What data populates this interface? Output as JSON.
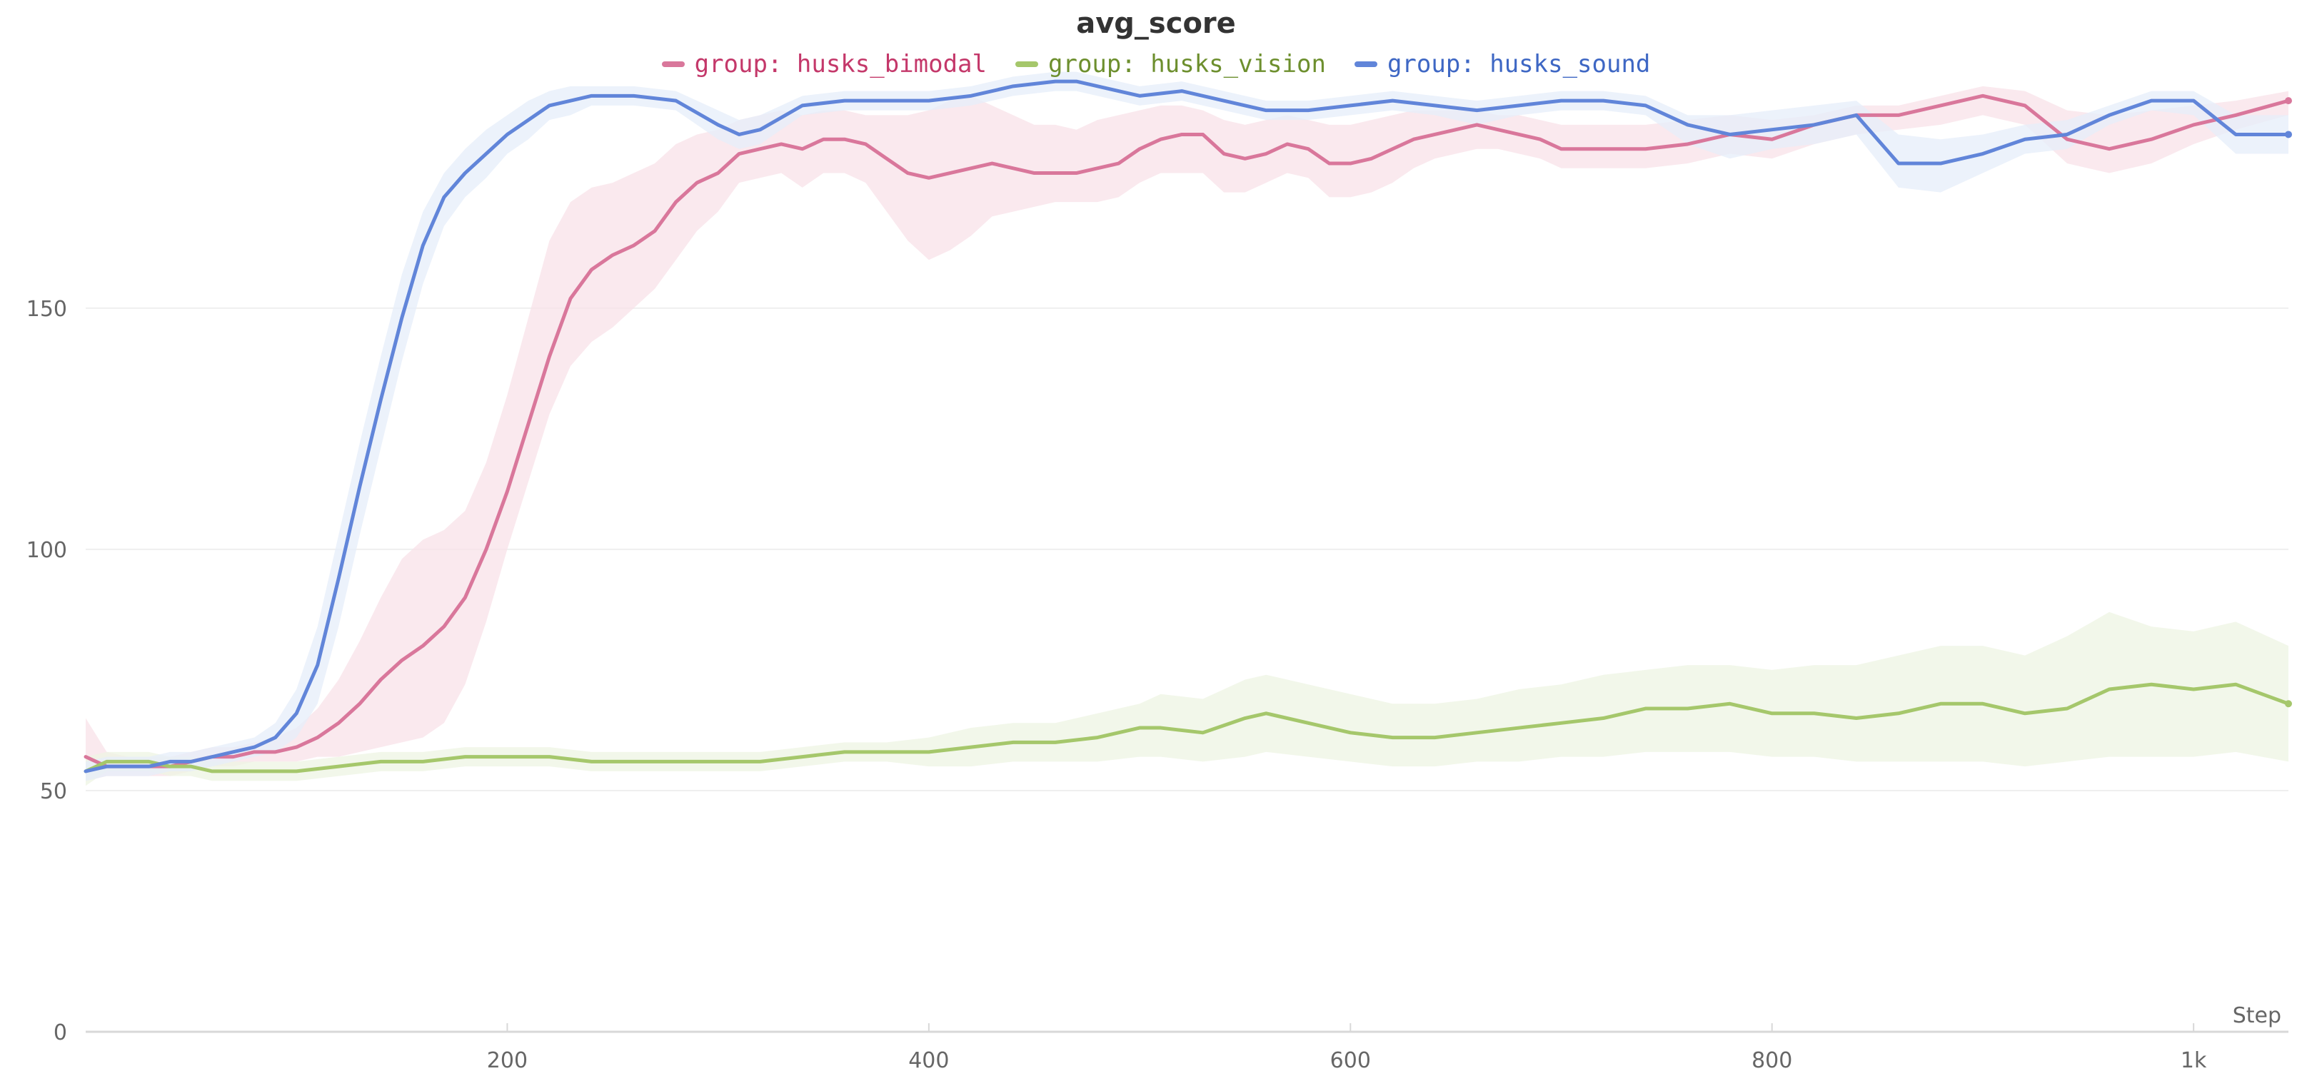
{
  "chart_data": {
    "type": "line",
    "title": "avg_score",
    "xlabel": "Step",
    "ylabel": "",
    "xlim": [
      0,
      1045
    ],
    "ylim": [
      0,
      205
    ],
    "grid": true,
    "legend_position": "top-center",
    "x_ticks": [
      {
        "value": 200,
        "label": "200"
      },
      {
        "value": 400,
        "label": "400"
      },
      {
        "value": 600,
        "label": "600"
      },
      {
        "value": 800,
        "label": "800"
      },
      {
        "value": 1000,
        "label": "1k"
      }
    ],
    "y_ticks": [
      {
        "value": 0,
        "label": "0"
      },
      {
        "value": 50,
        "label": "50"
      },
      {
        "value": 100,
        "label": "100"
      },
      {
        "value": 150,
        "label": "150"
      }
    ],
    "series": [
      {
        "name": "group: husks_bimodal",
        "color": "#d9779b",
        "legend_text_color": "#c4386a",
        "band_color": "#f8e1e8",
        "x": [
          0,
          10,
          20,
          30,
          40,
          50,
          60,
          70,
          80,
          90,
          100,
          110,
          120,
          130,
          140,
          150,
          160,
          170,
          180,
          190,
          200,
          210,
          220,
          230,
          240,
          250,
          260,
          270,
          280,
          290,
          300,
          310,
          320,
          330,
          340,
          350,
          360,
          370,
          380,
          390,
          400,
          410,
          420,
          430,
          440,
          450,
          460,
          470,
          480,
          490,
          500,
          510,
          520,
          530,
          540,
          550,
          560,
          570,
          580,
          590,
          600,
          610,
          620,
          630,
          640,
          650,
          660,
          670,
          680,
          690,
          700,
          720,
          740,
          760,
          780,
          800,
          820,
          840,
          860,
          880,
          900,
          920,
          940,
          960,
          980,
          1000,
          1020,
          1045
        ],
        "values": [
          57,
          55,
          55,
          55,
          55,
          56,
          57,
          57,
          58,
          58,
          59,
          61,
          64,
          68,
          73,
          77,
          80,
          84,
          90,
          100,
          112,
          126,
          140,
          152,
          158,
          161,
          163,
          166,
          172,
          176,
          178,
          182,
          183,
          184,
          183,
          185,
          185,
          184,
          181,
          178,
          177,
          178,
          179,
          180,
          179,
          178,
          178,
          178,
          179,
          180,
          183,
          185,
          186,
          186,
          182,
          181,
          182,
          184,
          183,
          180,
          180,
          181,
          183,
          185,
          186,
          187,
          188,
          187,
          186,
          185,
          183,
          183,
          183,
          184,
          186,
          185,
          188,
          190,
          190,
          192,
          194,
          192,
          185,
          183,
          185,
          188,
          190,
          193
        ],
        "band_upper": [
          65,
          58,
          57,
          57,
          57,
          58,
          59,
          59,
          60,
          61,
          63,
          67,
          73,
          81,
          90,
          98,
          102,
          104,
          108,
          118,
          132,
          148,
          164,
          172,
          175,
          176,
          178,
          180,
          184,
          186,
          187,
          189,
          190,
          191,
          190,
          191,
          191,
          190,
          190,
          190,
          191,
          193,
          194,
          192,
          190,
          188,
          188,
          187,
          189,
          190,
          191,
          192,
          192,
          191,
          189,
          188,
          189,
          190,
          189,
          188,
          188,
          189,
          190,
          191,
          191,
          191,
          191,
          190,
          190,
          189,
          188,
          188,
          188,
          189,
          190,
          189,
          190,
          192,
          192,
          194,
          196,
          195,
          191,
          190,
          191,
          192,
          193,
          195
        ],
        "band_lower": [
          52,
          53,
          53,
          53,
          53,
          54,
          55,
          55,
          56,
          56,
          56,
          57,
          57,
          58,
          59,
          60,
          61,
          64,
          72,
          85,
          100,
          114,
          128,
          138,
          143,
          146,
          150,
          154,
          160,
          166,
          170,
          176,
          177,
          178,
          175,
          178,
          178,
          176,
          170,
          164,
          160,
          162,
          165,
          169,
          170,
          171,
          172,
          172,
          172,
          173,
          176,
          178,
          178,
          178,
          174,
          174,
          176,
          178,
          177,
          173,
          173,
          174,
          176,
          179,
          181,
          182,
          183,
          183,
          182,
          181,
          179,
          179,
          179,
          180,
          182,
          181,
          184,
          186,
          187,
          188,
          190,
          188,
          180,
          178,
          180,
          184,
          187,
          190
        ]
      },
      {
        "name": "group: husks_vision",
        "color": "#a5c76b",
        "legend_text_color": "#6d8f2e",
        "band_color": "#eef4e3",
        "x": [
          0,
          10,
          20,
          30,
          40,
          50,
          60,
          70,
          80,
          90,
          100,
          120,
          140,
          160,
          180,
          200,
          220,
          240,
          260,
          280,
          300,
          320,
          340,
          360,
          380,
          400,
          420,
          440,
          460,
          480,
          500,
          510,
          530,
          550,
          560,
          580,
          600,
          620,
          640,
          660,
          680,
          700,
          720,
          740,
          760,
          780,
          800,
          820,
          840,
          860,
          880,
          900,
          920,
          940,
          960,
          980,
          1000,
          1020,
          1045
        ],
        "values": [
          54,
          56,
          56,
          56,
          55,
          55,
          54,
          54,
          54,
          54,
          54,
          55,
          56,
          56,
          57,
          57,
          57,
          56,
          56,
          56,
          56,
          56,
          57,
          58,
          58,
          58,
          59,
          60,
          60,
          61,
          63,
          63,
          62,
          65,
          66,
          64,
          62,
          61,
          61,
          62,
          63,
          64,
          65,
          67,
          67,
          68,
          66,
          66,
          65,
          66,
          68,
          68,
          66,
          67,
          71,
          72,
          71,
          72,
          68
        ],
        "band_upper": [
          57,
          58,
          58,
          58,
          57,
          57,
          56,
          56,
          56,
          56,
          56,
          57,
          58,
          58,
          59,
          59,
          59,
          58,
          58,
          58,
          58,
          58,
          59,
          60,
          60,
          61,
          63,
          64,
          64,
          66,
          68,
          70,
          69,
          73,
          74,
          72,
          70,
          68,
          68,
          69,
          71,
          72,
          74,
          75,
          76,
          76,
          75,
          76,
          76,
          78,
          80,
          80,
          78,
          82,
          87,
          84,
          83,
          85,
          80
        ],
        "band_lower": [
          51,
          54,
          54,
          54,
          53,
          53,
          52,
          52,
          52,
          52,
          52,
          53,
          54,
          54,
          55,
          55,
          55,
          54,
          54,
          54,
          54,
          54,
          55,
          56,
          56,
          55,
          55,
          56,
          56,
          56,
          57,
          57,
          56,
          57,
          58,
          57,
          56,
          55,
          55,
          56,
          56,
          57,
          57,
          58,
          58,
          58,
          57,
          57,
          56,
          56,
          56,
          56,
          55,
          56,
          57,
          57,
          57,
          58,
          56
        ]
      },
      {
        "name": "group: husks_sound",
        "color": "#6185d9",
        "legend_text_color": "#3e67c4",
        "band_color": "#e6edfa",
        "x": [
          0,
          10,
          20,
          30,
          40,
          50,
          60,
          70,
          80,
          90,
          100,
          110,
          120,
          130,
          140,
          150,
          160,
          170,
          180,
          190,
          200,
          210,
          220,
          230,
          240,
          260,
          280,
          300,
          310,
          320,
          340,
          360,
          380,
          400,
          420,
          440,
          460,
          470,
          480,
          500,
          520,
          540,
          560,
          580,
          600,
          620,
          640,
          660,
          680,
          700,
          720,
          740,
          760,
          780,
          800,
          820,
          840,
          860,
          880,
          900,
          920,
          940,
          960,
          980,
          1000,
          1020,
          1045
        ],
        "values": [
          54,
          55,
          55,
          55,
          56,
          56,
          57,
          58,
          59,
          61,
          66,
          76,
          94,
          113,
          131,
          148,
          163,
          173,
          178,
          182,
          186,
          189,
          192,
          193,
          194,
          194,
          193,
          188,
          186,
          187,
          192,
          193,
          193,
          193,
          194,
          196,
          197,
          197,
          196,
          194,
          195,
          193,
          191,
          191,
          192,
          193,
          192,
          191,
          192,
          193,
          193,
          192,
          188,
          186,
          187,
          188,
          190,
          180,
          180,
          182,
          185,
          186,
          190,
          193,
          193,
          186,
          186
        ],
        "band_upper": [
          56,
          57,
          57,
          57,
          58,
          58,
          59,
          60,
          61,
          64,
          71,
          84,
          103,
          122,
          140,
          157,
          170,
          178,
          183,
          187,
          190,
          193,
          195,
          196,
          196,
          196,
          195,
          191,
          189,
          190,
          194,
          195,
          195,
          195,
          196,
          198,
          199,
          199,
          198,
          196,
          197,
          195,
          193,
          193,
          194,
          195,
          194,
          193,
          194,
          195,
          195,
          194,
          190,
          190,
          191,
          192,
          193,
          186,
          185,
          186,
          188,
          189,
          192,
          195,
          195,
          190,
          190
        ],
        "band_lower": [
          52,
          53,
          53,
          53,
          54,
          54,
          55,
          56,
          57,
          58,
          61,
          68,
          84,
          103,
          121,
          139,
          155,
          167,
          173,
          177,
          182,
          185,
          189,
          190,
          192,
          192,
          191,
          185,
          183,
          184,
          190,
          191,
          191,
          191,
          192,
          194,
          195,
          195,
          194,
          192,
          193,
          191,
          189,
          189,
          190,
          191,
          190,
          188,
          190,
          191,
          191,
          190,
          184,
          181,
          183,
          184,
          186,
          175,
          174,
          178,
          182,
          183,
          188,
          191,
          190,
          182,
          182
        ]
      }
    ]
  }
}
